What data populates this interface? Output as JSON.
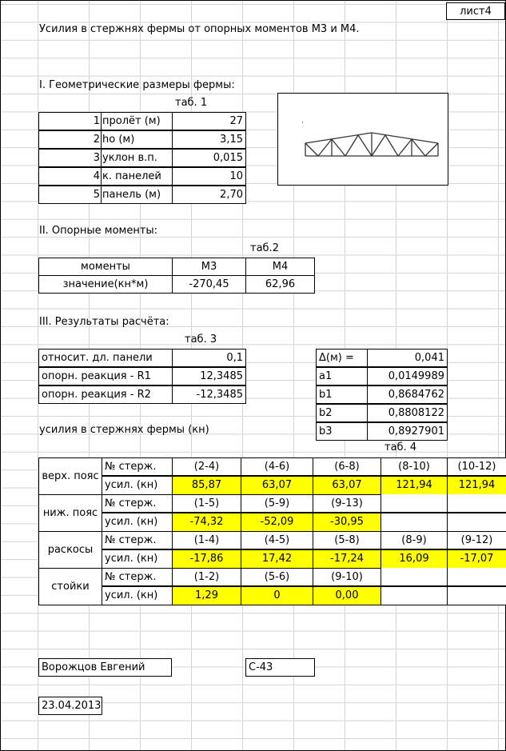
{
  "sheet_label": "лист4",
  "title": "Усилия в стержнях фермы от опорных моментов М3 и М4.",
  "section1": {
    "heading": "I. Геометрические размеры фермы:",
    "table_label": "таб. 1",
    "rows": [
      {
        "n": "1",
        "name": "пролёт (м)",
        "value": "27"
      },
      {
        "n": "2",
        "name": "ho (м)",
        "value": "3,15"
      },
      {
        "n": "3",
        "name": "уклон в.п.",
        "value": "0,015"
      },
      {
        "n": "4",
        "name": "к. панелей",
        "value": "10"
      },
      {
        "n": "5",
        "name": "панель (м)",
        "value": "2,70"
      }
    ]
  },
  "section2": {
    "heading": "II. Опорные моменты:",
    "table_label": "таб.2",
    "header": [
      "моменты",
      "М3",
      "М4"
    ],
    "row": [
      "значение(кн*м)",
      "-270,45",
      "62,96"
    ]
  },
  "section3": {
    "heading": "III. Результаты расчёта:",
    "table_label": "таб. 3",
    "left_rows": [
      {
        "name": "относит. дл. панели",
        "value": "0,1"
      },
      {
        "name": "опорн. реакция - R1",
        "value": "12,3485"
      },
      {
        "name": "опорн. реакция - R2",
        "value": "-12,3485"
      }
    ],
    "right_rows": [
      {
        "name": "Δ(м) =",
        "value": "0,041"
      },
      {
        "name": "a1",
        "value": "0,0149989"
      },
      {
        "name": "b1",
        "value": "0,8684762"
      },
      {
        "name": "b2",
        "value": "0,8808122"
      },
      {
        "name": "b3",
        "value": "0,8927901"
      }
    ],
    "forces_label": "усилия в стержнях фермы (кн)"
  },
  "table4": {
    "label": "таб. 4",
    "groups": [
      {
        "name": "верх. пояс",
        "rod_label": "№ стерж.",
        "force_label": "усил. (кн)",
        "rods": [
          "(2-4)",
          "(4-6)",
          "(6-8)",
          "(8-10)",
          "(10-12)"
        ],
        "forces": [
          "85,87",
          "63,07",
          "63,07",
          "121,94",
          "121,94"
        ]
      },
      {
        "name": "ниж. пояс",
        "rod_label": "№ стерж.",
        "force_label": "усил. (кн)",
        "rods": [
          "(1-5)",
          "(5-9)",
          "(9-13)",
          "",
          ""
        ],
        "forces": [
          "-74,32",
          "-52,09",
          "-30,95",
          "",
          ""
        ]
      },
      {
        "name": "раскосы",
        "rod_label": "№ стерж.",
        "force_label": "усил. (кн)",
        "rods": [
          "(1-4)",
          "(4-5)",
          "(5-8)",
          "(8-9)",
          "(9-12)"
        ],
        "forces": [
          "-17,86",
          "17,42",
          "-17,24",
          "16,09",
          "-17,07"
        ]
      },
      {
        "name": "стойки",
        "rod_label": "№ стерж.",
        "force_label": "усил. (кн)",
        "rods": [
          "(1-2)",
          "(5-6)",
          "(9-10)",
          "",
          ""
        ],
        "forces": [
          "1,29",
          "0",
          "0,00",
          "",
          ""
        ]
      }
    ]
  },
  "footer": {
    "author": "Ворожцов Евгений",
    "group": "С-43",
    "date": "23.04.2013"
  },
  "colors": {
    "highlight": "#ffff00",
    "grid": "#d4d4d4",
    "border": "#000000"
  }
}
